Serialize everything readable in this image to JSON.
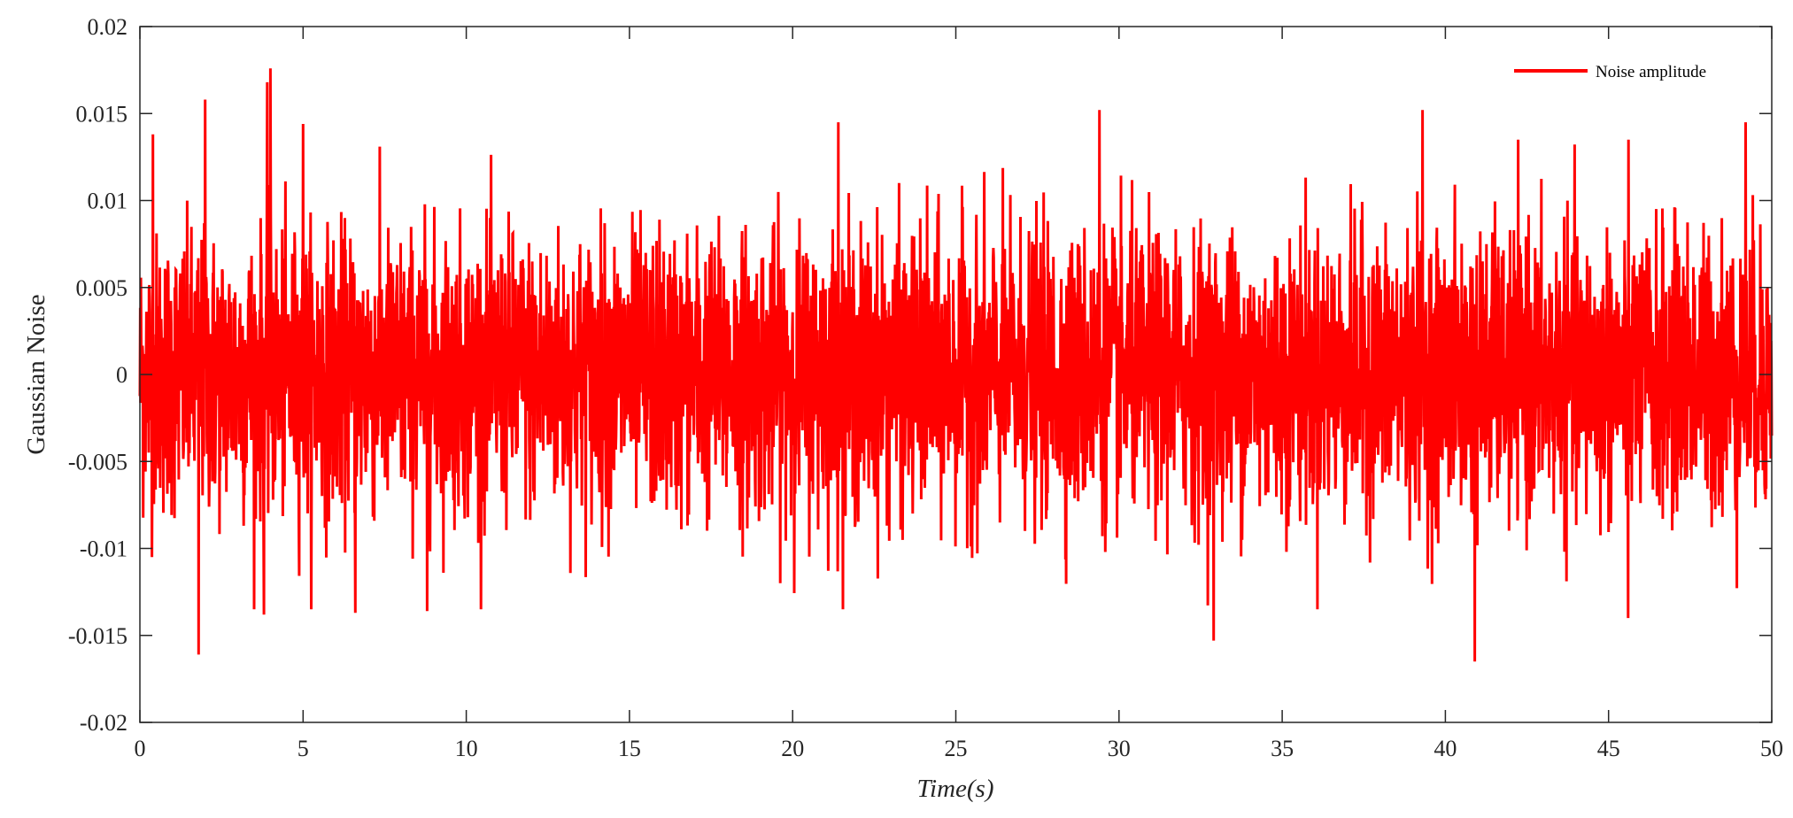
{
  "chart_data": {
    "type": "line",
    "title": "",
    "xlabel": "Time(s)",
    "ylabel": "Gaussian Noise",
    "xlim": [
      0,
      50
    ],
    "ylim": [
      -0.02,
      0.02
    ],
    "x_ticks": [
      0,
      5,
      10,
      15,
      20,
      25,
      30,
      35,
      40,
      45,
      50
    ],
    "x_tick_labels": [
      "0",
      "5",
      "10",
      "15",
      "20",
      "25",
      "30",
      "35",
      "40",
      "45",
      "50"
    ],
    "y_ticks": [
      -0.02,
      -0.015,
      -0.01,
      -0.005,
      0,
      0.005,
      0.01,
      0.015,
      0.02
    ],
    "y_tick_labels": [
      "-0.02",
      "-0.015",
      "-0.01",
      "-0.005",
      "0",
      "0.005",
      "0.01",
      "0.015",
      "0.02"
    ],
    "grid": false,
    "legend_position": "top-right",
    "series": [
      {
        "name": "Noise amplitude",
        "color": "#ff0000",
        "distribution": "gaussian",
        "mean": 0,
        "std": 0.004,
        "sample_interval": 0.01,
        "peaks": [
          {
            "x": 3.9,
            "y": 0.0168
          },
          {
            "x": 4.0,
            "y": 0.0176
          },
          {
            "x": 2.0,
            "y": 0.0158
          },
          {
            "x": 0.4,
            "y": 0.0138
          },
          {
            "x": 5.0,
            "y": 0.0144
          },
          {
            "x": 21.4,
            "y": 0.0145
          },
          {
            "x": 29.4,
            "y": 0.0152
          },
          {
            "x": 39.3,
            "y": 0.0152
          },
          {
            "x": 49.2,
            "y": 0.0145
          },
          {
            "x": 1.8,
            "y": -0.0161
          },
          {
            "x": 3.8,
            "y": -0.0138
          },
          {
            "x": 6.6,
            "y": -0.0137
          },
          {
            "x": 8.8,
            "y": -0.0136
          },
          {
            "x": 32.9,
            "y": -0.0153
          },
          {
            "x": 40.9,
            "y": -0.0165
          },
          {
            "x": 45.6,
            "y": -0.014
          }
        ]
      }
    ]
  }
}
